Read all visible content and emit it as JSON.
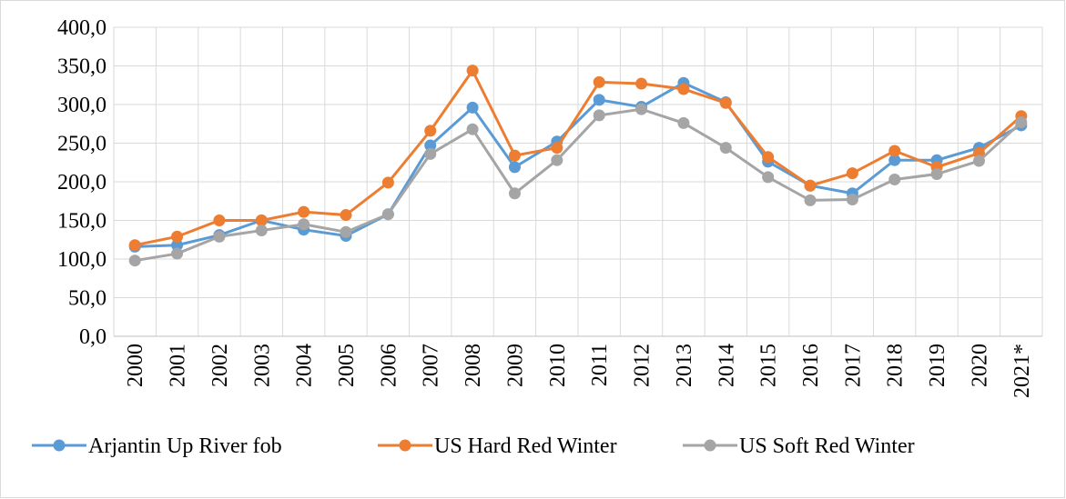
{
  "chart_data": {
    "type": "line",
    "categories": [
      "2000",
      "2001",
      "2002",
      "2003",
      "2004",
      "2005",
      "2006",
      "2007",
      "2008",
      "2009",
      "2010",
      "2011",
      "2012",
      "2013",
      "2014",
      "2015",
      "2016",
      "2017",
      "2018",
      "2019",
      "2020",
      "2021*"
    ],
    "series": [
      {
        "name": "Arjantin Up River fob",
        "color": "#5b9bd5",
        "values": [
          116,
          118,
          131,
          150,
          138,
          130,
          158,
          247,
          296,
          219,
          252,
          306,
          297,
          328,
          303,
          226,
          195,
          185,
          228,
          228,
          244,
          273
        ]
      },
      {
        "name": "US Hard Red Winter",
        "color": "#ed7d31",
        "values": [
          118,
          129,
          150,
          150,
          161,
          157,
          199,
          266,
          344,
          234,
          244,
          329,
          327,
          320,
          302,
          232,
          195,
          211,
          240,
          219,
          237,
          285
        ]
      },
      {
        "name": "US Soft Red Winter",
        "color": "#a5a5a5",
        "values": [
          98,
          107,
          129,
          137,
          145,
          135,
          158,
          236,
          268,
          185,
          228,
          286,
          294,
          276,
          244,
          206,
          176,
          177,
          203,
          210,
          227,
          277
        ]
      }
    ],
    "ylim": [
      0,
      400
    ],
    "yticks": [
      {
        "value": 0,
        "label": "0,0"
      },
      {
        "value": 50,
        "label": "50,0"
      },
      {
        "value": 100,
        "label": "100,0"
      },
      {
        "value": 150,
        "label": "150,0"
      },
      {
        "value": 200,
        "label": "200,0"
      },
      {
        "value": 250,
        "label": "250,0"
      },
      {
        "value": 300,
        "label": "300,0"
      },
      {
        "value": 350,
        "label": "350,0"
      },
      {
        "value": 400,
        "label": "400,0"
      }
    ],
    "grid": true,
    "legend": "bottom"
  }
}
